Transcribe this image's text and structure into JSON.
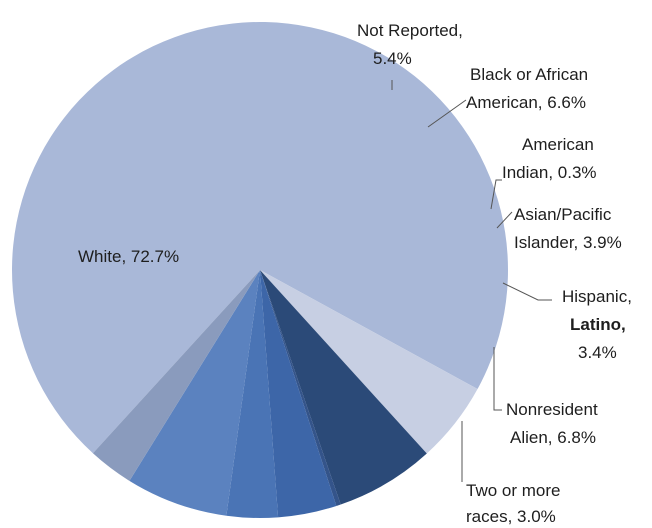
{
  "chart_data": {
    "type": "pie",
    "slices": [
      {
        "label": "White",
        "pct_text": "72.7%",
        "value": 72.7,
        "color": "#a9b8d8"
      },
      {
        "label": "Not Reported",
        "pct_text": "5.4%",
        "value": 5.4,
        "color": "#c7cfe3"
      },
      {
        "label": "Black or African American",
        "pct_text": "6.6%",
        "value": 6.6,
        "color": "#2b4a78"
      },
      {
        "label": "American Indian",
        "pct_text": "0.3%",
        "value": 0.3,
        "color": "#34548a"
      },
      {
        "label": "Asian/Pacific Islander",
        "pct_text": "3.9%",
        "value": 3.9,
        "color": "#3d66a8"
      },
      {
        "label": "Hispanic, Latino",
        "pct_text": "3.4%",
        "value": 3.4,
        "color": "#4a74b5"
      },
      {
        "label": "Nonresident Alien",
        "pct_text": "6.8%",
        "value": 6.8,
        "color": "#5b82bf"
      },
      {
        "label": "Two or more races",
        "pct_text": "3.0%",
        "value": 3.0,
        "color": "#8a9bbd"
      }
    ],
    "labels": {
      "white": "White, 72.7%",
      "not_reported_1": "Not Reported,",
      "not_reported_2": "5.4%",
      "black_1": "Black or African",
      "black_2": "American, 6.6%",
      "amind_1": "American",
      "amind_2": "Indian, 0.3%",
      "asian_1": "Asian/Pacific",
      "asian_2": "Islander, 3.9%",
      "hisp_1": "Hispanic,",
      "hisp_2": "Latino,",
      "hisp_3": "3.4%",
      "nra_1": "Nonresident",
      "nra_2": "Alien, 6.8%",
      "two_1": "Two or more",
      "two_2": "races, 3.0%"
    }
  }
}
